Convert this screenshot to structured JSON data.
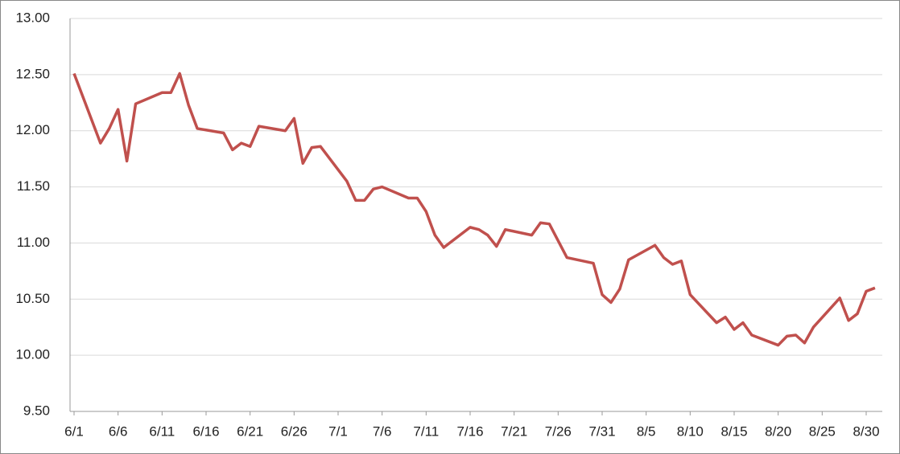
{
  "chart_data": {
    "type": "line",
    "x": [
      "6/1",
      "6/4",
      "6/5",
      "6/6",
      "6/7",
      "6/8",
      "6/11",
      "6/12",
      "6/13",
      "6/14",
      "6/15",
      "6/18",
      "6/19",
      "6/20",
      "6/21",
      "6/22",
      "6/25",
      "6/26",
      "6/27",
      "6/28",
      "6/29",
      "7/2",
      "7/3",
      "7/4",
      "7/5",
      "7/6",
      "7/9",
      "7/10",
      "7/11",
      "7/12",
      "7/13",
      "7/16",
      "7/17",
      "7/18",
      "7/19",
      "7/20",
      "7/23",
      "7/24",
      "7/25",
      "7/27",
      "7/30",
      "7/31",
      "8/1",
      "8/2",
      "8/3",
      "8/6",
      "8/7",
      "8/8",
      "8/9",
      "8/10",
      "8/13",
      "8/14",
      "8/15",
      "8/16",
      "8/17",
      "8/20",
      "8/21",
      "8/22",
      "8/23",
      "8/24",
      "8/27",
      "8/28",
      "8/29",
      "8/30",
      "8/31"
    ],
    "series": [
      {
        "color": "#c0504d",
        "values": [
          12.51,
          11.89,
          12.02,
          12.19,
          11.73,
          12.24,
          12.34,
          12.34,
          12.51,
          12.23,
          12.02,
          11.98,
          11.83,
          11.89,
          11.86,
          12.04,
          12.0,
          12.11,
          11.71,
          11.85,
          11.86,
          11.55,
          11.38,
          11.38,
          11.48,
          11.5,
          11.4,
          11.4,
          11.28,
          11.07,
          10.96,
          11.14,
          11.12,
          11.07,
          10.97,
          11.12,
          11.07,
          11.18,
          11.17,
          10.87,
          10.82,
          10.54,
          10.47,
          10.59,
          10.85,
          10.98,
          10.87,
          10.81,
          10.84,
          10.54,
          10.29,
          10.34,
          10.23,
          10.29,
          10.18,
          10.09,
          10.17,
          10.18,
          10.11,
          10.25,
          10.51,
          10.31,
          10.37,
          10.57,
          10.6
        ]
      }
    ],
    "xticks": [
      "6/1",
      "6/6",
      "6/11",
      "6/16",
      "6/21",
      "6/26",
      "7/1",
      "7/6",
      "7/11",
      "7/16",
      "7/21",
      "7/26",
      "7/31",
      "8/5",
      "8/10",
      "8/15",
      "8/20",
      "8/25",
      "8/30"
    ],
    "ylim": [
      9.5,
      13
    ],
    "yticks": [
      {
        "value": 9.5,
        "label": "9.50"
      },
      {
        "value": 10,
        "label": "10.00"
      },
      {
        "value": 10.5,
        "label": "10.50"
      },
      {
        "value": 11,
        "label": "11.00"
      },
      {
        "value": 11.5,
        "label": "11.50"
      },
      {
        "value": 12,
        "label": "12.00"
      },
      {
        "value": 12.5,
        "label": "12.50"
      },
      {
        "value": 13,
        "label": "13.00"
      }
    ],
    "grid": true
  }
}
